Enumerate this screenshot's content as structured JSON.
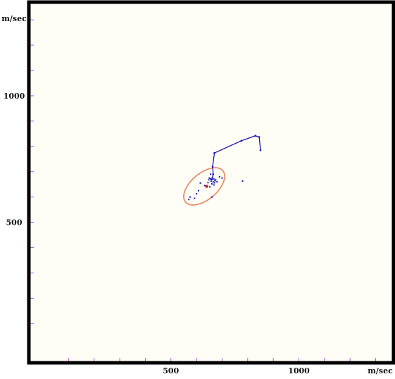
{
  "chart_data": {
    "type": "scatter",
    "xlabel": "m/sec",
    "ylabel": "m/sec",
    "xlim": [
      -55,
      1370
    ],
    "ylim": [
      -55,
      1370
    ],
    "x_ticks": [
      500,
      1000
    ],
    "y_ticks": [
      500,
      1000
    ],
    "x_tick_labels": [
      "500",
      "1000"
    ],
    "y_tick_labels": [
      "500",
      "1000"
    ],
    "grid": false,
    "colors": {
      "background": "#fffdf5",
      "frame": "#000000",
      "minor_ticks": "#c050c8",
      "track": "#1a1ab4",
      "ellipse": "#e8825c",
      "center": "#d02020"
    },
    "track": [
      {
        "x": 850,
        "y": 785
      },
      {
        "x": 845,
        "y": 837
      },
      {
        "x": 830,
        "y": 842
      },
      {
        "x": 775,
        "y": 822
      },
      {
        "x": 670,
        "y": 774
      },
      {
        "x": 663,
        "y": 720
      },
      {
        "x": 665,
        "y": 690
      },
      {
        "x": 660,
        "y": 670
      }
    ],
    "scatter_points": [
      {
        "x": 650,
        "y": 675
      },
      {
        "x": 655,
        "y": 672
      },
      {
        "x": 658,
        "y": 668
      },
      {
        "x": 662,
        "y": 676
      },
      {
        "x": 668,
        "y": 671
      },
      {
        "x": 672,
        "y": 664
      },
      {
        "x": 665,
        "y": 660
      },
      {
        "x": 670,
        "y": 656
      },
      {
        "x": 657,
        "y": 662
      },
      {
        "x": 648,
        "y": 668
      },
      {
        "x": 660,
        "y": 652
      },
      {
        "x": 675,
        "y": 668
      },
      {
        "x": 680,
        "y": 660
      },
      {
        "x": 645,
        "y": 657
      },
      {
        "x": 668,
        "y": 648
      },
      {
        "x": 690,
        "y": 680
      },
      {
        "x": 700,
        "y": 675
      },
      {
        "x": 780,
        "y": 663
      },
      {
        "x": 655,
        "y": 690
      },
      {
        "x": 632,
        "y": 645
      },
      {
        "x": 608,
        "y": 625
      },
      {
        "x": 600,
        "y": 613
      },
      {
        "x": 575,
        "y": 600
      },
      {
        "x": 570,
        "y": 590
      },
      {
        "x": 592,
        "y": 595
      },
      {
        "x": 660,
        "y": 600
      },
      {
        "x": 615,
        "y": 655
      },
      {
        "x": 652,
        "y": 640
      }
    ],
    "center": {
      "x": 640,
      "y": 642
    },
    "ellipse": {
      "cx": 630,
      "cy": 642,
      "rx": 95,
      "ry": 52,
      "rotation_deg": -40
    }
  }
}
